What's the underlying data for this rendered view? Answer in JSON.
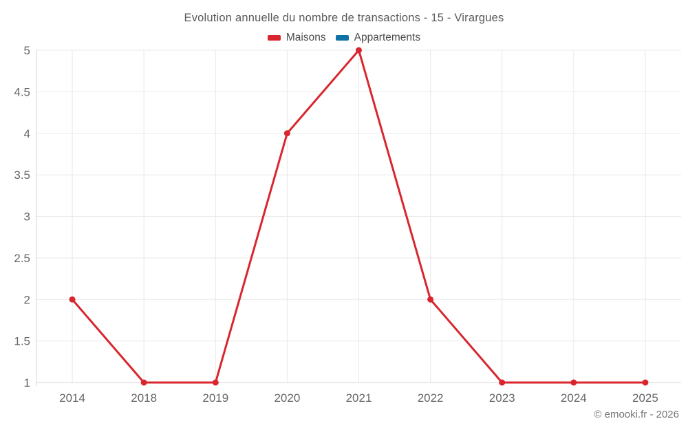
{
  "title": "Evolution annuelle du nombre de transactions - 15 - Virargues",
  "legend": [
    {
      "label": "Maisons",
      "color": "#d9262e"
    },
    {
      "label": "Appartements",
      "color": "#0e72a5"
    }
  ],
  "footer": "© emooki.fr - 2026",
  "colors": {
    "grid": "#e8e8e8",
    "axis": "#d4d4d4",
    "tick_text": "#666666"
  },
  "chart_data": {
    "type": "line",
    "title": "Evolution annuelle du nombre de transactions - 15 - Virargues",
    "categories": [
      "2014",
      "2018",
      "2019",
      "2020",
      "2021",
      "2022",
      "2023",
      "2024",
      "2025"
    ],
    "series": [
      {
        "name": "Maisons",
        "color": "#d9262e",
        "values": [
          2,
          1,
          1,
          4,
          5,
          2,
          1,
          1,
          1
        ]
      },
      {
        "name": "Appartements",
        "color": "#0e72a5",
        "values": []
      }
    ],
    "xlabel": "",
    "ylabel": "",
    "ylim": [
      1,
      5
    ],
    "ytick_step": 0.5,
    "grid": true,
    "legend_position": "top"
  }
}
